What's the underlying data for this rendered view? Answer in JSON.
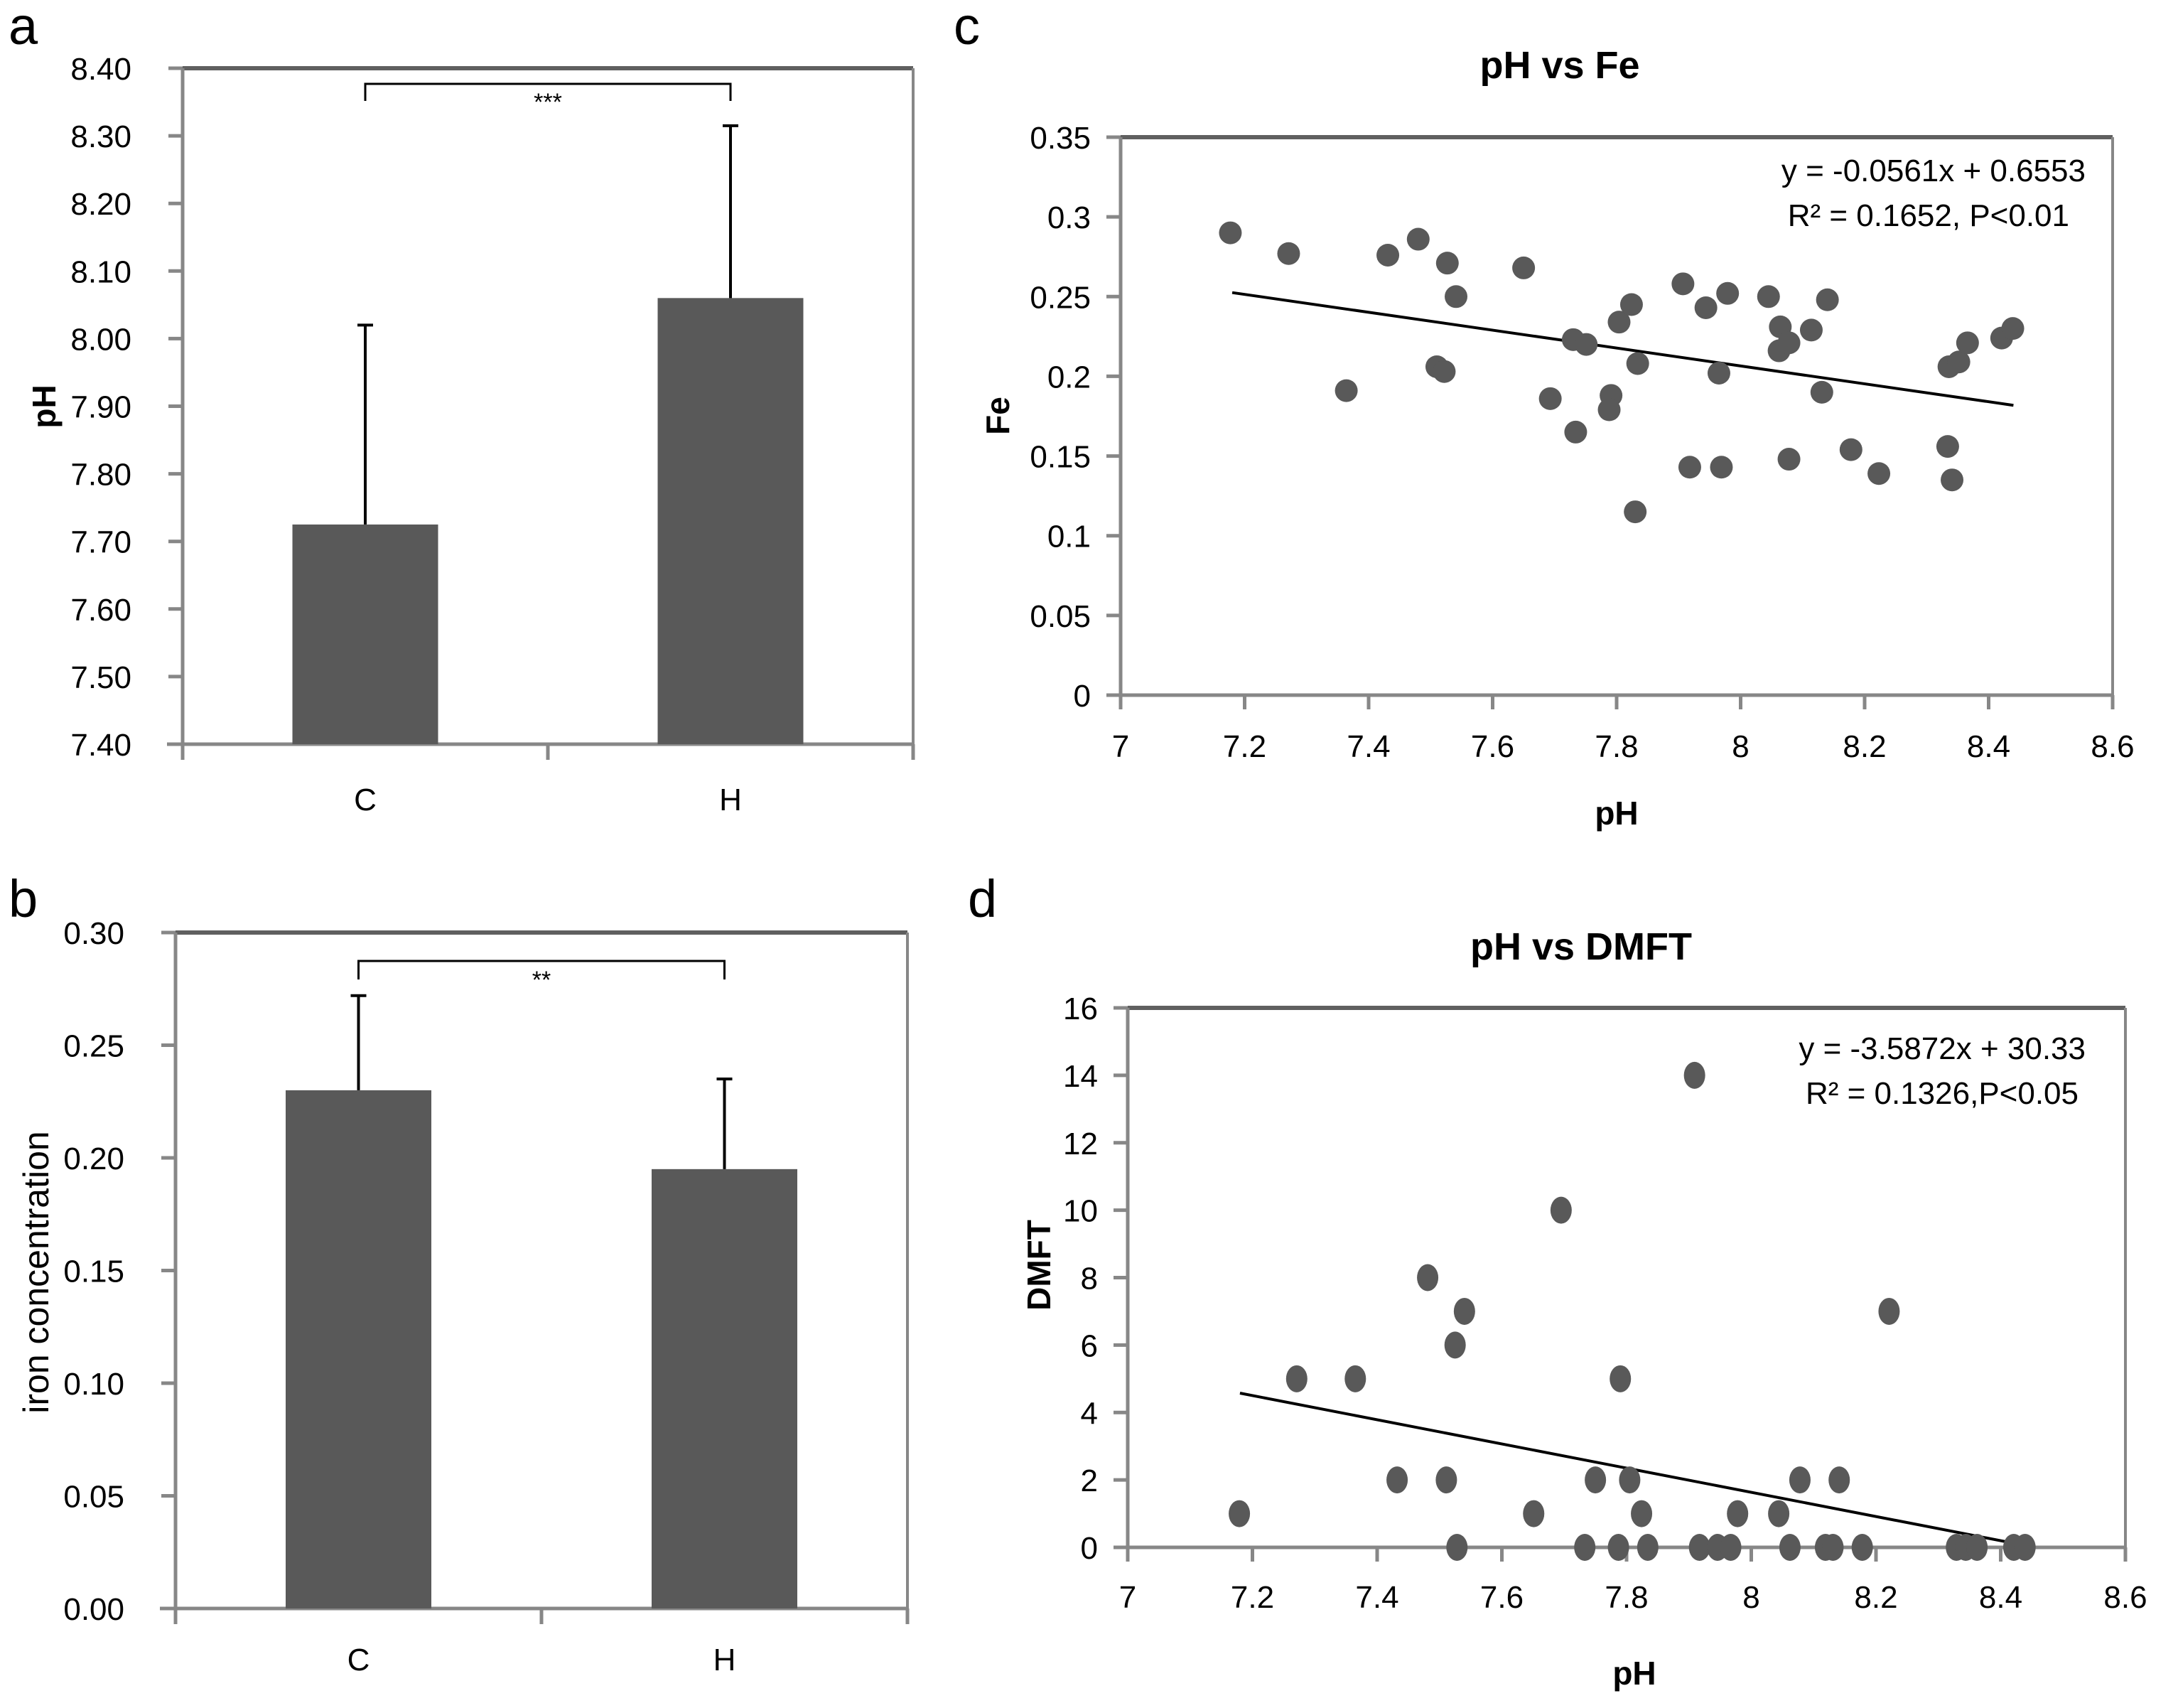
{
  "chart_data": [
    {
      "panel": "a",
      "type": "bar",
      "title": "",
      "xlabel": "",
      "ylabel": "pH",
      "categories": [
        "C",
        "H"
      ],
      "values": [
        7.725,
        8.06
      ],
      "error_upper": [
        8.02,
        8.315
      ],
      "ylim": [
        7.4,
        8.4
      ],
      "yticks": [
        "7.40",
        "7.50",
        "7.60",
        "7.70",
        "7.80",
        "7.90",
        "8.00",
        "8.10",
        "8.20",
        "8.30",
        "8.40"
      ],
      "bar_color": "#595959",
      "grid": false,
      "significance": {
        "between": [
          "C",
          "H"
        ],
        "label": "***"
      }
    },
    {
      "panel": "b",
      "type": "bar",
      "title": "",
      "xlabel": "",
      "ylabel": "iron concentration",
      "categories": [
        "C",
        "H"
      ],
      "values": [
        0.23,
        0.195
      ],
      "error_upper": [
        0.272,
        0.235
      ],
      "ylim": [
        0.0,
        0.3
      ],
      "yticks": [
        "0.00",
        "0.05",
        "0.10",
        "0.15",
        "0.20",
        "0.25",
        "0.30"
      ],
      "bar_color": "#595959",
      "grid": false,
      "significance": {
        "between": [
          "C",
          "H"
        ],
        "label": "**"
      }
    },
    {
      "panel": "c",
      "type": "scatter",
      "title": "pH vs Fe",
      "xlabel": "pH",
      "ylabel": "Fe",
      "xlim": [
        7,
        8.6
      ],
      "ylim": [
        0,
        0.35
      ],
      "xticks": [
        "7",
        "7.2",
        "7.4",
        "7.6",
        "7.8",
        "8",
        "8.2",
        "8.4",
        "8.6"
      ],
      "yticks": [
        "0",
        "0.05",
        "0.1",
        "0.15",
        "0.2",
        "0.25",
        "0.3",
        "0.35"
      ],
      "grid": false,
      "marker_color": "#595959",
      "trendline": {
        "slope": -0.0561,
        "intercept": 0.6553,
        "x_range": [
          7.18,
          8.44
        ]
      },
      "annotation": [
        "y = -0.0561x + 0.6553",
        "R² = 0.1652, P<0.01"
      ],
      "points": [
        [
          7.177,
          0.29
        ],
        [
          7.271,
          0.277
        ],
        [
          7.431,
          0.276
        ],
        [
          7.48,
          0.286
        ],
        [
          7.527,
          0.271
        ],
        [
          7.65,
          0.268
        ],
        [
          7.541,
          0.25
        ],
        [
          7.364,
          0.191
        ],
        [
          7.51,
          0.206
        ],
        [
          7.522,
          0.203
        ],
        [
          7.73,
          0.223
        ],
        [
          7.751,
          0.22
        ],
        [
          7.693,
          0.186
        ],
        [
          7.734,
          0.165
        ],
        [
          7.791,
          0.188
        ],
        [
          7.788,
          0.179
        ],
        [
          7.804,
          0.234
        ],
        [
          7.824,
          0.245
        ],
        [
          7.834,
          0.208
        ],
        [
          7.83,
          0.115
        ],
        [
          7.907,
          0.258
        ],
        [
          7.944,
          0.243
        ],
        [
          7.979,
          0.252
        ],
        [
          7.965,
          0.202
        ],
        [
          7.918,
          0.143
        ],
        [
          7.969,
          0.143
        ],
        [
          8.045,
          0.25
        ],
        [
          8.064,
          0.231
        ],
        [
          8.062,
          0.216
        ],
        [
          8.078,
          0.221
        ],
        [
          8.078,
          0.148
        ],
        [
          8.114,
          0.229
        ],
        [
          8.14,
          0.248
        ],
        [
          8.131,
          0.19
        ],
        [
          8.178,
          0.154
        ],
        [
          8.223,
          0.139
        ],
        [
          8.334,
          0.156
        ],
        [
          8.341,
          0.135
        ],
        [
          8.336,
          0.206
        ],
        [
          8.352,
          0.209
        ],
        [
          8.366,
          0.221
        ],
        [
          8.421,
          0.224
        ],
        [
          8.439,
          0.23
        ]
      ]
    },
    {
      "panel": "d",
      "type": "scatter",
      "title": "pH vs DMFT",
      "xlabel": "pH",
      "ylabel": "DMFT",
      "xlim": [
        7,
        8.6
      ],
      "ylim": [
        0,
        16
      ],
      "xticks": [
        "7",
        "7.2",
        "7.4",
        "7.6",
        "7.8",
        "8",
        "8.2",
        "8.4",
        "8.6"
      ],
      "yticks": [
        "0",
        "2",
        "4",
        "6",
        "8",
        "10",
        "12",
        "14",
        "16"
      ],
      "grid": false,
      "marker_color": "#595959",
      "trendline": {
        "slope": -3.5872,
        "intercept": 30.33,
        "x_range": [
          7.18,
          8.44
        ]
      },
      "annotation": [
        "y = -3.5872x + 30.33",
        "R² = 0.1326,P<0.05"
      ],
      "points": [
        [
          7.179,
          1
        ],
        [
          7.271,
          5
        ],
        [
          7.365,
          5
        ],
        [
          7.432,
          2
        ],
        [
          7.481,
          8
        ],
        [
          7.511,
          2
        ],
        [
          7.525,
          6
        ],
        [
          7.54,
          7
        ],
        [
          7.528,
          0
        ],
        [
          7.651,
          1
        ],
        [
          7.695,
          10
        ],
        [
          7.733,
          0
        ],
        [
          7.75,
          2
        ],
        [
          7.79,
          5
        ],
        [
          7.787,
          0
        ],
        [
          7.805,
          2
        ],
        [
          7.824,
          1
        ],
        [
          7.834,
          0
        ],
        [
          7.909,
          14
        ],
        [
          7.917,
          0
        ],
        [
          7.946,
          0
        ],
        [
          7.967,
          0
        ],
        [
          7.978,
          1
        ],
        [
          8.044,
          1
        ],
        [
          8.062,
          0
        ],
        [
          8.078,
          2
        ],
        [
          8.119,
          0
        ],
        [
          8.131,
          0
        ],
        [
          8.141,
          2
        ],
        [
          8.178,
          0
        ],
        [
          8.221,
          7
        ],
        [
          8.329,
          0
        ],
        [
          8.344,
          0
        ],
        [
          8.362,
          0
        ],
        [
          8.421,
          0
        ],
        [
          8.439,
          0
        ]
      ]
    }
  ],
  "panel_letters": {
    "a": "a",
    "b": "b",
    "c": "c",
    "d": "d"
  }
}
